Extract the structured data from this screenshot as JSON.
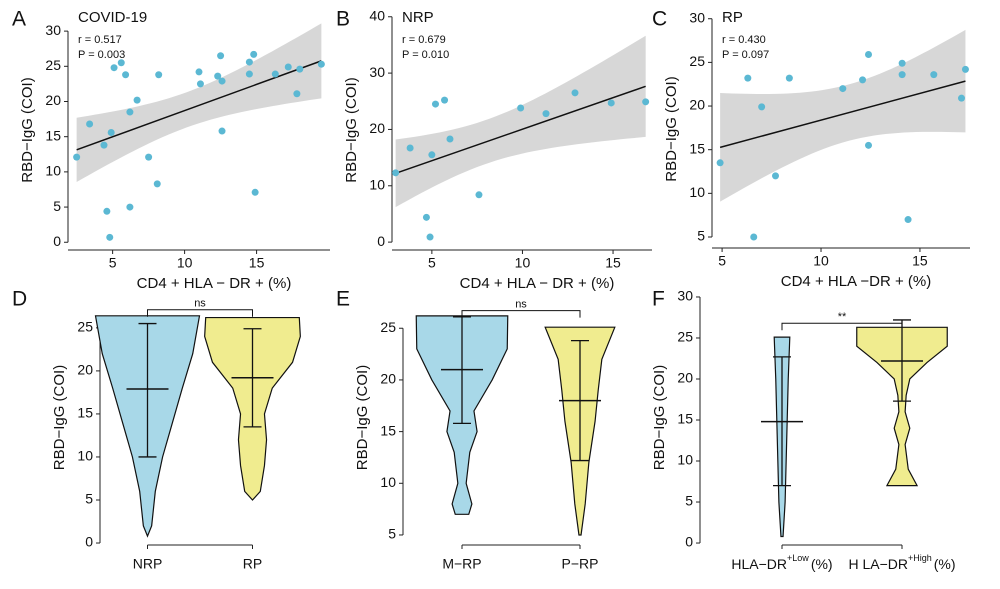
{
  "chart_data": [
    {
      "type": "scatter",
      "panel": "A",
      "title": "COVID-19",
      "annotations": [
        "r = 0.517",
        "P = 0.003"
      ],
      "x_label": "CD4 + HLA − DR + (%)",
      "y_label": "RBD−IgG (COI)",
      "color": "#5bb8d3",
      "band_color": "#d3d3d3",
      "x": [
        2.5,
        3.4,
        4.4,
        4.6,
        4.8,
        4.9,
        5.1,
        5.6,
        5.9,
        6.2,
        6.2,
        6.7,
        7.5,
        8.1,
        8.2,
        11.0,
        11.1,
        12.3,
        12.5,
        12.6,
        12.6,
        14.5,
        14.5,
        14.8,
        14.9,
        16.3,
        17.2,
        17.8,
        18.0,
        19.5
      ],
      "y": [
        12.1,
        16.8,
        13.8,
        4.4,
        0.7,
        15.6,
        24.8,
        25.5,
        23.8,
        5.0,
        18.5,
        20.2,
        12.1,
        8.3,
        23.8,
        24.2,
        22.5,
        23.6,
        26.5,
        15.8,
        22.9,
        25.6,
        23.9,
        26.7,
        7.1,
        23.9,
        24.9,
        21.1,
        24.6,
        25.3
      ],
      "xlim": [
        1.9,
        20.1
      ],
      "ylim": [
        -1.1,
        33
      ],
      "xticks": [
        5,
        10,
        15
      ],
      "yticks": [
        0,
        5,
        10,
        15,
        20,
        25,
        30
      ]
    },
    {
      "type": "scatter",
      "panel": "B",
      "title": "NRP",
      "annotations": [
        "r = 0.679",
        "P = 0.010"
      ],
      "x_label": "CD4 + HLA − DR + (%)",
      "y_label": "RBD−IgG (COI)",
      "color": "#5bb8d3",
      "band_color": "#d3d3d3",
      "x": [
        3.0,
        3.8,
        4.7,
        4.9,
        5.0,
        5.2,
        5.7,
        6.0,
        7.6,
        9.9,
        11.3,
        12.9,
        14.9,
        16.8
      ],
      "y": [
        12.3,
        16.7,
        4.4,
        0.9,
        15.5,
        24.5,
        25.2,
        18.3,
        8.4,
        23.8,
        22.8,
        26.5,
        24.7,
        24.9
      ],
      "xlim": [
        2.8,
        17.15
      ],
      "ylim": [
        -1.4,
        41.2
      ],
      "xticks": [
        5,
        10,
        15
      ],
      "yticks": [
        0,
        10,
        20,
        30,
        40
      ]
    },
    {
      "type": "scatter",
      "panel": "C",
      "title": "RP",
      "annotations": [
        "r = 0.430",
        "P = 0.097"
      ],
      "x_label": "CD4 + HLA −DR + (%)",
      "y_label": "RBD−IgG (COI)",
      "color": "#5bb8d3",
      "band_color": "#d3d3d3",
      "x": [
        4.9,
        6.3,
        6.6,
        7.0,
        7.7,
        8.4,
        11.1,
        12.1,
        12.4,
        12.4,
        14.1,
        14.1,
        14.4,
        15.7,
        17.1,
        17.3
      ],
      "y": [
        13.5,
        23.2,
        5.0,
        19.9,
        12.0,
        23.2,
        22.0,
        23.0,
        25.9,
        15.5,
        24.9,
        23.6,
        7.0,
        23.6,
        20.9,
        24.2
      ],
      "xlim": [
        4.49,
        17.53
      ],
      "ylim": [
        3.74,
        31.0
      ],
      "xticks": [
        5,
        10,
        15
      ],
      "yticks": [
        5,
        10,
        15,
        20,
        25,
        30
      ]
    },
    {
      "type": "violin",
      "panel": "D",
      "y_label": "RBD−IgG (COI)",
      "categories": [
        "NRP",
        "RP"
      ],
      "ylim": [
        -0.23,
        29.4
      ],
      "yticks": [
        0,
        5,
        10,
        15,
        20,
        25
      ],
      "violins": [
        {
          "color": "#a8d8e8",
          "center": 17.9,
          "whisker_high": 25.5,
          "whisker_low": 10.0,
          "density_y": [
            26.4,
            22,
            18,
            14,
            10,
            6,
            2,
            0.8
          ],
          "density": [
            1.0,
            0.87,
            0.67,
            0.48,
            0.29,
            0.15,
            0.08,
            0
          ]
        },
        {
          "color": "#f0ec8f",
          "center": 19.2,
          "whisker_high": 24.9,
          "whisker_low": 13.5,
          "density_y": [
            26.2,
            24,
            21,
            18,
            15,
            12,
            9,
            6,
            5
          ],
          "density": [
            0.9,
            0.92,
            0.77,
            0.38,
            0.23,
            0.27,
            0.23,
            0.15,
            0
          ]
        }
      ],
      "bracket": {
        "label": "ns",
        "y": 27.1
      }
    },
    {
      "type": "violin",
      "panel": "E",
      "y_label": "RBD−IgG (COI)",
      "categories": [
        "M−RP",
        "P−RP"
      ],
      "ylim": [
        4.03,
        28.7
      ],
      "yticks": [
        5,
        10,
        15,
        20,
        25
      ],
      "violins": [
        {
          "color": "#a8d8e8",
          "center": 21.0,
          "whisker_high": 26.1,
          "whisker_low": 15.8,
          "density_y": [
            26.2,
            23,
            20,
            17,
            15,
            13,
            10,
            8,
            7
          ],
          "density": [
            0.88,
            0.87,
            0.58,
            0.23,
            0.29,
            0.15,
            0.08,
            0.19,
            0.13
          ]
        },
        {
          "color": "#f0ec8f",
          "center": 18.0,
          "whisker_high": 23.8,
          "whisker_low": 12.2,
          "density_y": [
            25.1,
            22,
            19,
            16,
            12,
            8,
            5
          ],
          "density": [
            0.67,
            0.42,
            0.35,
            0.29,
            0.17,
            0.1,
            0.02
          ]
        }
      ],
      "bracket": {
        "label": "ns",
        "y": 26.7
      }
    },
    {
      "type": "violin",
      "panel": "F",
      "y_label": "RBD−IgG (COI)",
      "categories": [
        {
          "text": "HLA−DR",
          "sup": "+Low",
          "suffix": "(%)"
        },
        {
          "text": "H LA−DR",
          "sup": "+High",
          "suffix": "(%)"
        }
      ],
      "ylim": [
        -0.24,
        30.85
      ],
      "yticks": [
        0,
        5,
        10,
        15,
        20,
        25,
        30
      ],
      "violins": [
        {
          "color": "#a8d8e8",
          "center": 14.8,
          "whisker_high": 22.7,
          "whisker_low": 7.0,
          "density_y": [
            25.1,
            20,
            15,
            10,
            5,
            0.8
          ],
          "density": [
            0.15,
            0.12,
            0.1,
            0.08,
            0.06,
            0.02
          ]
        },
        {
          "color": "#f0ec8f",
          "center": 22.2,
          "whisker_high": 27.2,
          "whisker_low": 17.3,
          "density_y": [
            26.3,
            24,
            22,
            20,
            18,
            16,
            14,
            12,
            9,
            7
          ],
          "density": [
            0.87,
            0.87,
            0.48,
            0.15,
            0.08,
            0.06,
            0.15,
            0.06,
            0.12,
            0.29
          ]
        }
      ],
      "bracket": {
        "label": "**",
        "y": 26.8
      }
    }
  ]
}
